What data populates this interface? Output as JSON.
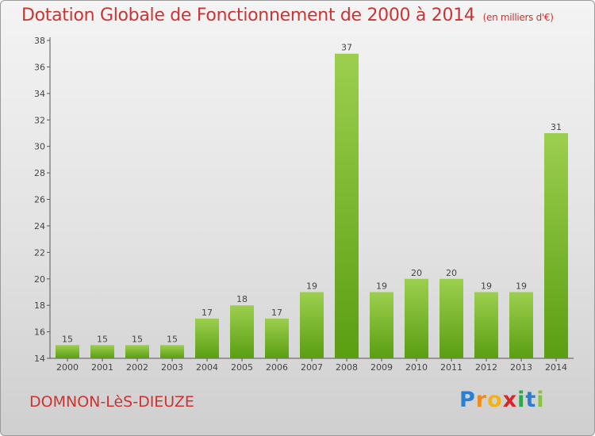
{
  "header": {
    "title": "Dotation Globale de Fonctionnement de 2000 à 2014",
    "unit": "(en milliers d'€)"
  },
  "footer": {
    "commune": "DOMNON-LèS-DIEUZE",
    "logo_letters": [
      "P",
      "r",
      "o",
      "x",
      "i",
      "t",
      "i"
    ],
    "logo_colors": [
      "#2a7fd4",
      "#f08a1c",
      "#f0b31c",
      "#d8262b",
      "#2aa84a",
      "#2a7fd4",
      "#8ac43f"
    ]
  },
  "colors": {
    "title": "#cc3333",
    "bar_light": "#9ccf4e",
    "bar_dark": "#5a9e12",
    "axis": "#555555"
  },
  "chart_data": {
    "type": "bar",
    "categories": [
      "2000",
      "2001",
      "2002",
      "2003",
      "2004",
      "2005",
      "2006",
      "2007",
      "2008",
      "2009",
      "2010",
      "2011",
      "2012",
      "2013",
      "2014"
    ],
    "values": [
      15,
      15,
      15,
      15,
      17,
      18,
      17,
      19,
      37,
      19,
      20,
      20,
      19,
      19,
      31
    ],
    "ylim": [
      14,
      38
    ],
    "yticks": [
      14,
      16,
      18,
      20,
      22,
      24,
      26,
      28,
      30,
      32,
      34,
      36,
      38
    ],
    "grid": false,
    "xlabel": "",
    "ylabel": ""
  }
}
